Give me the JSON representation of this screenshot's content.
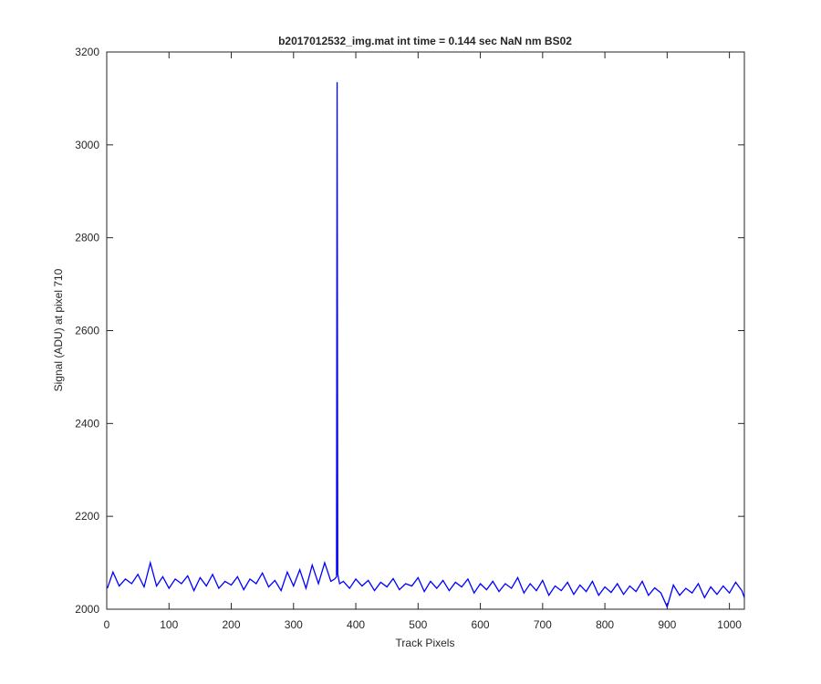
{
  "chart_data": {
    "type": "line",
    "title": "b2017012532_img.mat int time = 0.144 sec  NaN nm BS02",
    "x_label": "Track Pixels",
    "y_label": "Signal (ADU) at pixel 710",
    "xlim": [
      0,
      1024
    ],
    "xticks": [
      0,
      100,
      200,
      300,
      400,
      500,
      600,
      700,
      800,
      900,
      1000
    ],
    "ylim": [
      2000,
      3200
    ],
    "yticks": [
      2000,
      2200,
      2400,
      2600,
      2800,
      3000,
      3200
    ],
    "x": [
      1,
      10,
      20,
      30,
      40,
      50,
      60,
      70,
      80,
      90,
      100,
      110,
      120,
      130,
      140,
      150,
      160,
      170,
      180,
      190,
      200,
      210,
      220,
      230,
      240,
      250,
      260,
      270,
      280,
      290,
      300,
      310,
      320,
      330,
      340,
      350,
      360,
      366,
      369,
      370,
      371,
      374,
      380,
      390,
      400,
      410,
      420,
      430,
      440,
      450,
      460,
      470,
      480,
      490,
      500,
      510,
      520,
      530,
      540,
      550,
      560,
      570,
      580,
      590,
      600,
      610,
      620,
      630,
      640,
      650,
      660,
      670,
      680,
      690,
      700,
      710,
      720,
      730,
      740,
      750,
      760,
      770,
      780,
      790,
      800,
      810,
      820,
      830,
      840,
      850,
      860,
      870,
      880,
      890,
      900,
      910,
      920,
      930,
      940,
      950,
      960,
      970,
      980,
      990,
      1000,
      1010,
      1020,
      1024
    ],
    "series": [
      {
        "color": "#0000ff",
        "values": [
          2045,
          2080,
          2050,
          2065,
          2055,
          2075,
          2048,
          2100,
          2050,
          2070,
          2045,
          2065,
          2055,
          2072,
          2040,
          2068,
          2050,
          2075,
          2045,
          2060,
          2052,
          2070,
          2042,
          2065,
          2055,
          2078,
          2048,
          2062,
          2040,
          2080,
          2050,
          2085,
          2045,
          2095,
          2055,
          2100,
          2060,
          2065,
          2070,
          3135,
          2075,
          2055,
          2060,
          2045,
          2065,
          2050,
          2062,
          2040,
          2058,
          2048,
          2066,
          2042,
          2055,
          2050,
          2068,
          2038,
          2060,
          2045,
          2062,
          2040,
          2058,
          2048,
          2065,
          2035,
          2055,
          2042,
          2060,
          2038,
          2055,
          2045,
          2068,
          2035,
          2055,
          2040,
          2062,
          2030,
          2050,
          2040,
          2058,
          2032,
          2052,
          2038,
          2060,
          2030,
          2048,
          2036,
          2055,
          2032,
          2050,
          2038,
          2060,
          2030,
          2046,
          2035,
          2005,
          2052,
          2030,
          2045,
          2035,
          2055,
          2025,
          2048,
          2032,
          2050,
          2035,
          2058,
          2040,
          2025
        ]
      }
    ]
  }
}
